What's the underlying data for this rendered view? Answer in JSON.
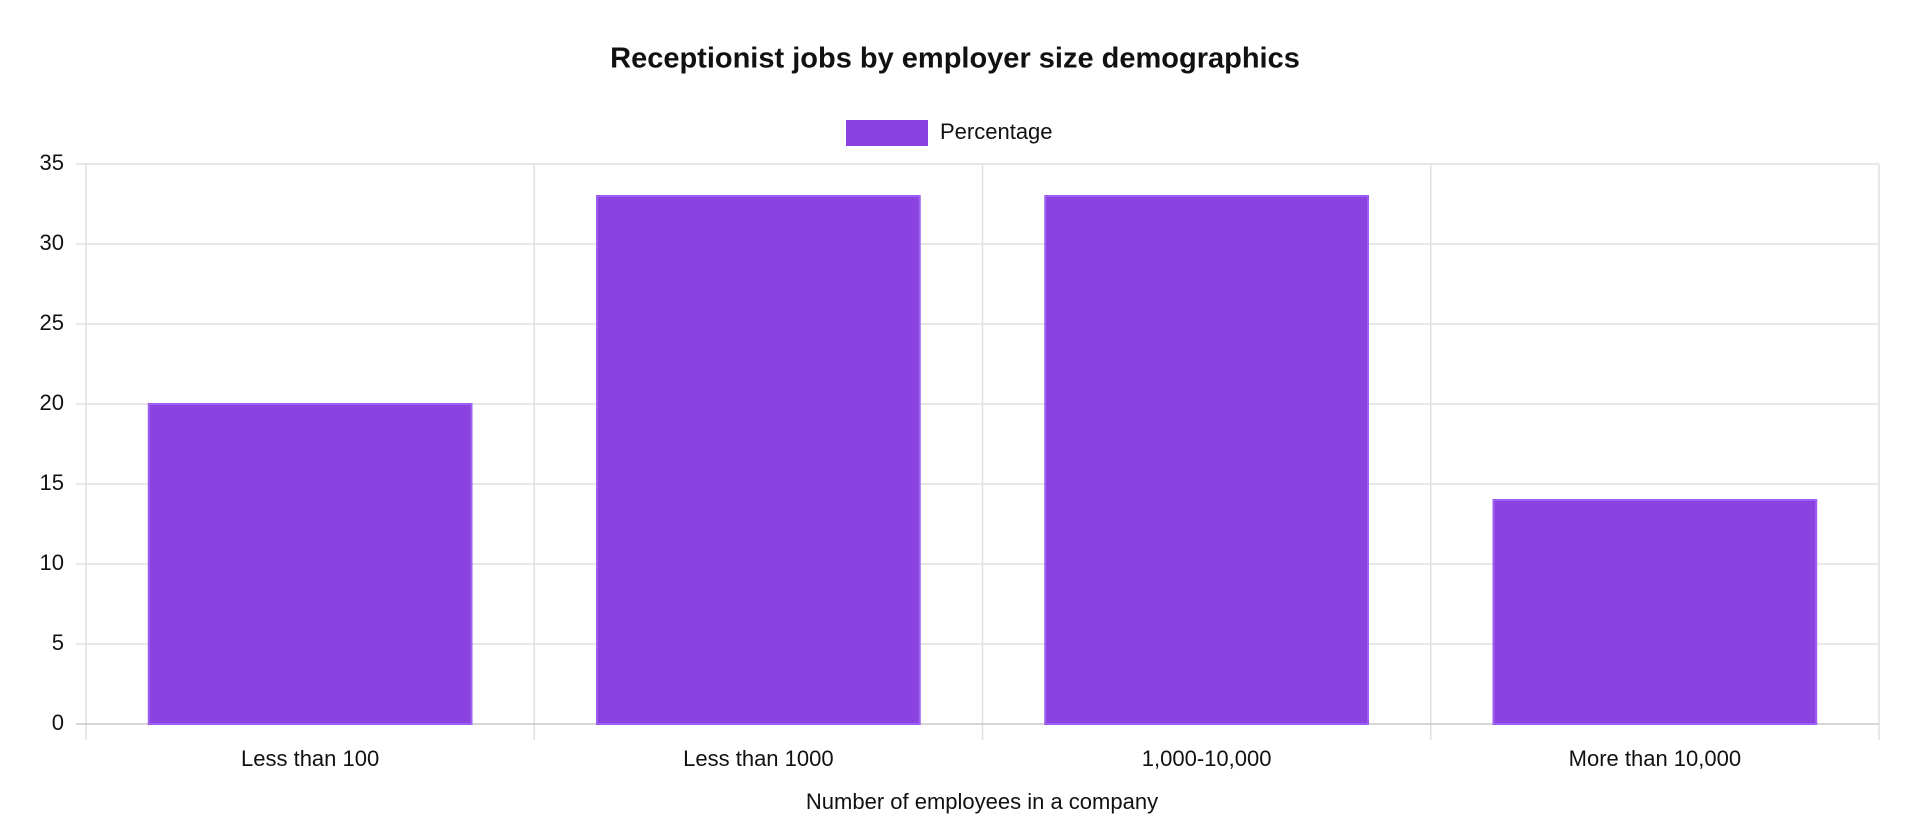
{
  "chart_data": {
    "type": "bar",
    "title": "Receptionist jobs by employer size demographics",
    "x_label": "Number of employees in a company",
    "categories": [
      "Less than 100",
      "Less than 1000",
      "1,000-10,000",
      "More than 10,000"
    ],
    "series": [
      {
        "name": "Percentage",
        "color": "#8a43e0",
        "values": [
          20,
          33,
          33,
          14
        ]
      }
    ],
    "ylim": [
      0,
      35
    ],
    "yticks": [
      0,
      5,
      10,
      15,
      20,
      25,
      30,
      35
    ],
    "grid": true,
    "legend": "top"
  }
}
